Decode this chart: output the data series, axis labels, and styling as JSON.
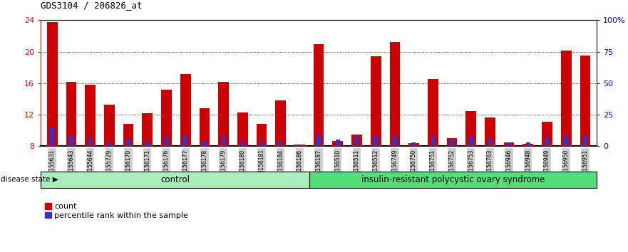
{
  "title": "GDS3104 / 206826_at",
  "samples": [
    "GSM155631",
    "GSM155643",
    "GSM155644",
    "GSM155729",
    "GSM156170",
    "GSM156171",
    "GSM156176",
    "GSM156177",
    "GSM156178",
    "GSM156179",
    "GSM156180",
    "GSM156181",
    "GSM156184",
    "GSM156186",
    "GSM156187",
    "GSM156510",
    "GSM156511",
    "GSM156512",
    "GSM156749",
    "GSM156750",
    "GSM156751",
    "GSM156752",
    "GSM156753",
    "GSM156763",
    "GSM156946",
    "GSM156948",
    "GSM156949",
    "GSM156950",
    "GSM156951"
  ],
  "red_values": [
    23.8,
    16.2,
    15.8,
    13.3,
    10.8,
    12.2,
    15.2,
    17.2,
    12.8,
    16.2,
    12.3,
    10.8,
    13.8,
    8.2,
    21.0,
    8.7,
    9.5,
    19.4,
    21.2,
    8.4,
    16.5,
    9.0,
    12.5,
    11.6,
    8.5,
    8.3,
    11.1,
    20.1,
    19.5
  ],
  "blue_values": [
    10.3,
    9.3,
    9.0,
    8.5,
    8.8,
    8.6,
    9.2,
    9.3,
    8.7,
    9.3,
    8.7,
    8.6,
    8.7,
    8.2,
    9.5,
    8.8,
    9.2,
    9.3,
    9.3,
    8.5,
    9.3,
    8.8,
    9.2,
    9.0,
    8.5,
    8.5,
    9.2,
    9.3,
    9.3
  ],
  "control_count": 14,
  "disease_count": 15,
  "control_label": "control",
  "disease_label": "insulin-resistant polycystic ovary syndrome",
  "disease_state_label": "disease state",
  "legend_red": "count",
  "legend_blue": "percentile rank within the sample",
  "ylim_left": [
    8,
    24
  ],
  "yticks_left": [
    8,
    12,
    16,
    20,
    24
  ],
  "yticks_right": [
    0,
    25,
    50,
    75,
    100
  ],
  "ytick_labels_right": [
    "0",
    "25",
    "50",
    "75",
    "100%"
  ],
  "bar_width": 0.55,
  "red_color": "#CC0000",
  "blue_color": "#3333CC",
  "control_bg": "#AAEEBB",
  "disease_bg": "#55DD77",
  "tick_label_bg": "#CCCCCC",
  "plot_bg": "#FFFFFF",
  "fig_bg": "#FFFFFF"
}
